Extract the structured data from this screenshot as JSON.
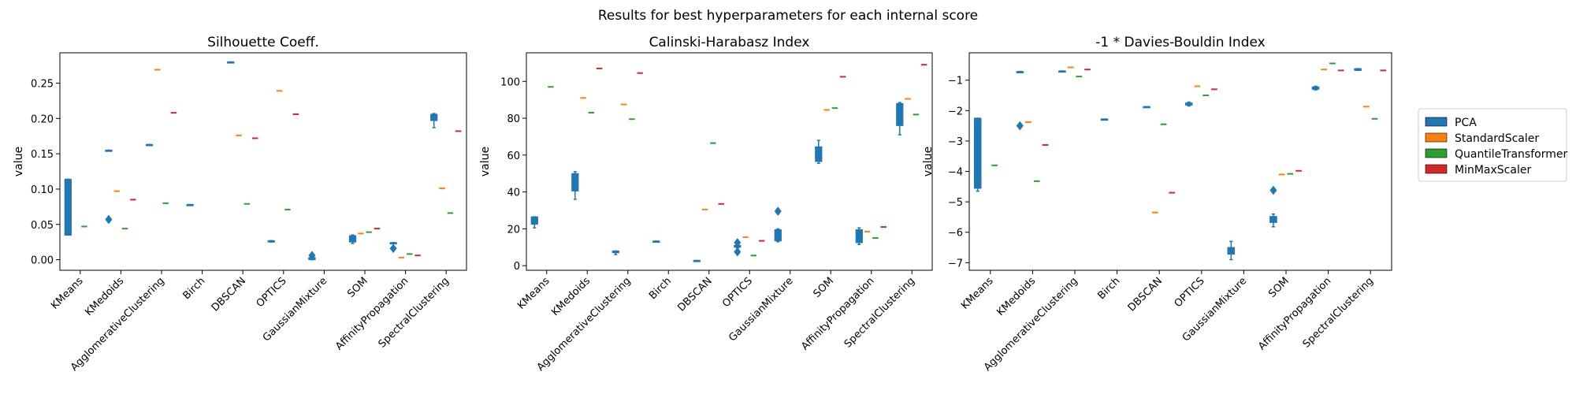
{
  "figure": {
    "suptitle": "Results for best hyperparameters for each internal score"
  },
  "legend": {
    "placement": "right",
    "entries": [
      {
        "name": "PCA",
        "color": "#1f77b4"
      },
      {
        "name": "StandardScaler",
        "color": "#ff7f0e"
      },
      {
        "name": "QuantileTransformer",
        "color": "#2ca02c"
      },
      {
        "name": "MinMaxScaler",
        "color": "#d62728"
      }
    ]
  },
  "chart_data": [
    {
      "type": "box",
      "title": "Silhouette Coeff.",
      "ylabel": "value",
      "xlabel": "",
      "ylim": [
        -0.015,
        0.293
      ],
      "yticks": [
        0.0,
        0.05,
        0.1,
        0.15,
        0.2,
        0.25
      ],
      "yticklabels": [
        "0.00",
        "0.05",
        "0.10",
        "0.15",
        "0.20",
        "0.25"
      ],
      "grid": false,
      "categories": [
        "KMeans",
        "KMedoids",
        "AgglomerativeClustering",
        "Birch",
        "DBSCAN",
        "OPTICS",
        "GaussianMixture",
        "SOM",
        "AffinityPropagation",
        "SpectralClustering"
      ],
      "series": [
        {
          "name": "PCA",
          "boxes": [
            {
              "min": 0.035,
              "q1": 0.035,
              "median": 0.035,
              "q3": 0.114,
              "max": 0.114,
              "fliers": []
            },
            {
              "min": 0.155,
              "q1": 0.155,
              "median": 0.155,
              "q3": 0.155,
              "max": 0.155,
              "fliers": [
                0.057
              ]
            },
            {
              "min": 0.163,
              "q1": 0.163,
              "median": 0.163,
              "q3": 0.163,
              "max": 0.163,
              "fliers": []
            },
            {
              "min": 0.078,
              "q1": 0.078,
              "median": 0.078,
              "q3": 0.078,
              "max": 0.078,
              "fliers": []
            },
            {
              "min": 0.28,
              "q1": 0.28,
              "median": 0.28,
              "q3": 0.28,
              "max": 0.28,
              "fliers": []
            },
            {
              "min": 0.025,
              "q1": 0.025,
              "median": 0.026,
              "q3": 0.027,
              "max": 0.027,
              "fliers": []
            },
            {
              "min": 0.0,
              "q1": 0.0,
              "median": 0.001,
              "q3": 0.003,
              "max": 0.003,
              "fliers": [
                0.006
              ]
            },
            {
              "min": 0.023,
              "q1": 0.025,
              "median": 0.026,
              "q3": 0.034,
              "max": 0.035,
              "fliers": []
            },
            {
              "min": 0.024,
              "q1": 0.024,
              "median": 0.024,
              "q3": 0.024,
              "max": 0.024,
              "fliers": [
                0.016
              ]
            },
            {
              "min": 0.187,
              "q1": 0.197,
              "median": 0.205,
              "q3": 0.206,
              "max": 0.207,
              "fliers": []
            }
          ]
        },
        {
          "name": "StandardScaler",
          "values": [
            null,
            0.097,
            0.269,
            null,
            0.176,
            0.239,
            null,
            0.037,
            0.003,
            0.101
          ]
        },
        {
          "name": "QuantileTransformer",
          "values": [
            0.047,
            0.044,
            0.08,
            null,
            0.079,
            0.071,
            null,
            0.039,
            0.008,
            0.066
          ]
        },
        {
          "name": "MinMaxScaler",
          "values": [
            null,
            0.085,
            0.208,
            null,
            0.172,
            0.206,
            null,
            0.044,
            0.006,
            0.182
          ]
        }
      ]
    },
    {
      "type": "box",
      "title": "Calinski-Harabasz Index",
      "ylabel": "value",
      "xlabel": "",
      "ylim": [
        -2.5,
        115.5
      ],
      "yticks": [
        0,
        20,
        40,
        60,
        80,
        100
      ],
      "yticklabels": [
        "0",
        "20",
        "40",
        "60",
        "80",
        "100"
      ],
      "grid": false,
      "categories": [
        "KMeans",
        "KMedoids",
        "AgglomerativeClustering",
        "Birch",
        "DBSCAN",
        "OPTICS",
        "GaussianMixture",
        "SOM",
        "AffinityPropagation",
        "SpectralClustering"
      ],
      "series": [
        {
          "name": "PCA",
          "boxes": [
            {
              "min": 20.5,
              "q1": 22.5,
              "median": 24.0,
              "q3": 26.5,
              "max": 26.5,
              "fliers": []
            },
            {
              "min": 36.0,
              "q1": 40.5,
              "median": 48.0,
              "q3": 50.0,
              "max": 51.0,
              "fliers": []
            },
            {
              "min": 6.0,
              "q1": 7.0,
              "median": 7.5,
              "q3": 8.0,
              "max": 8.0,
              "fliers": []
            },
            {
              "min": 13.3,
              "q1": 13.3,
              "median": 13.3,
              "q3": 13.3,
              "max": 13.3,
              "fliers": []
            },
            {
              "min": 2.8,
              "q1": 2.8,
              "median": 2.8,
              "q3": 2.8,
              "max": 2.8,
              "fliers": []
            },
            {
              "min": 9.5,
              "q1": 10.0,
              "median": 10.5,
              "q3": 11.0,
              "max": 11.5,
              "fliers": [
                7.5,
                12.5
              ]
            },
            {
              "min": 13.0,
              "q1": 13.5,
              "median": 14.5,
              "q3": 19.5,
              "max": 20.0,
              "fliers": [
                29.5
              ]
            },
            {
              "min": 55.5,
              "q1": 56.5,
              "median": 57.5,
              "q3": 64.5,
              "max": 68.0,
              "fliers": []
            },
            {
              "min": 11.5,
              "q1": 12.5,
              "median": 15.0,
              "q3": 19.5,
              "max": 20.5,
              "fliers": []
            },
            {
              "min": 71.0,
              "q1": 76.0,
              "median": 87.0,
              "q3": 88.0,
              "max": 88.5,
              "fliers": []
            }
          ]
        },
        {
          "name": "StandardScaler",
          "values": [
            null,
            91.0,
            87.5,
            null,
            30.5,
            15.5,
            null,
            84.5,
            18.5,
            90.5
          ]
        },
        {
          "name": "QuantileTransformer",
          "values": [
            97.0,
            83.0,
            79.5,
            null,
            66.5,
            5.5,
            null,
            85.5,
            15.0,
            82.0
          ]
        },
        {
          "name": "MinMaxScaler",
          "values": [
            null,
            107.0,
            104.5,
            null,
            33.5,
            13.5,
            null,
            102.5,
            21.0,
            109.0
          ]
        }
      ]
    },
    {
      "type": "box",
      "title": "-1 * Davies-Bouldin Index",
      "ylabel": "value",
      "xlabel": "",
      "ylim": [
        -7.25,
        -0.1
      ],
      "yticks": [
        -7,
        -6,
        -5,
        -4,
        -3,
        -2,
        -1
      ],
      "yticklabels": [
        "−7",
        "−6",
        "−5",
        "−4",
        "−3",
        "−2",
        "−1"
      ],
      "grid": false,
      "categories": [
        "KMeans",
        "KMedoids",
        "AgglomerativeClustering",
        "Birch",
        "DBSCAN",
        "OPTICS",
        "GaussianMixture",
        "SOM",
        "AffinityPropagation",
        "SpectralClustering"
      ],
      "series": [
        {
          "name": "PCA",
          "boxes": [
            {
              "min": -4.65,
              "q1": -4.55,
              "median": -4.55,
              "q3": -2.25,
              "max": -2.25,
              "fliers": []
            },
            {
              "min": -0.72,
              "q1": -0.72,
              "median": -0.72,
              "q3": -0.72,
              "max": -0.72,
              "fliers": [
                -2.5
              ]
            },
            {
              "min": -0.7,
              "q1": -0.7,
              "median": -0.7,
              "q3": -0.7,
              "max": -0.7,
              "fliers": []
            },
            {
              "min": -2.28,
              "q1": -2.28,
              "median": -2.28,
              "q3": -2.28,
              "max": -2.28,
              "fliers": []
            },
            {
              "min": -1.87,
              "q1": -1.87,
              "median": -1.87,
              "q3": -1.87,
              "max": -1.87,
              "fliers": []
            },
            {
              "min": -1.85,
              "q1": -1.82,
              "median": -1.8,
              "q3": -1.75,
              "max": -1.72,
              "fliers": []
            },
            {
              "min": -6.9,
              "q1": -6.72,
              "median": -6.6,
              "q3": -6.5,
              "max": -6.3,
              "fliers": []
            },
            {
              "min": -5.82,
              "q1": -5.68,
              "median": -5.58,
              "q3": -5.48,
              "max": -5.4,
              "fliers": [
                -4.62
              ]
            },
            {
              "min": -1.32,
              "q1": -1.3,
              "median": -1.25,
              "q3": -1.22,
              "max": -1.2,
              "fliers": []
            },
            {
              "min": -0.68,
              "q1": -0.68,
              "median": -0.64,
              "q3": -0.62,
              "max": -0.62,
              "fliers": []
            }
          ]
        },
        {
          "name": "StandardScaler",
          "values": [
            null,
            -2.38,
            -0.58,
            null,
            -5.35,
            -1.2,
            null,
            -4.1,
            -0.65,
            -1.87
          ]
        },
        {
          "name": "QuantileTransformer",
          "values": [
            -3.8,
            -4.32,
            -0.88,
            null,
            -2.45,
            -1.5,
            null,
            -4.08,
            -0.45,
            -2.27
          ]
        },
        {
          "name": "MinMaxScaler",
          "values": [
            null,
            -3.13,
            -0.65,
            null,
            -4.7,
            -1.3,
            null,
            -3.98,
            -0.68,
            -0.68
          ]
        }
      ]
    }
  ]
}
